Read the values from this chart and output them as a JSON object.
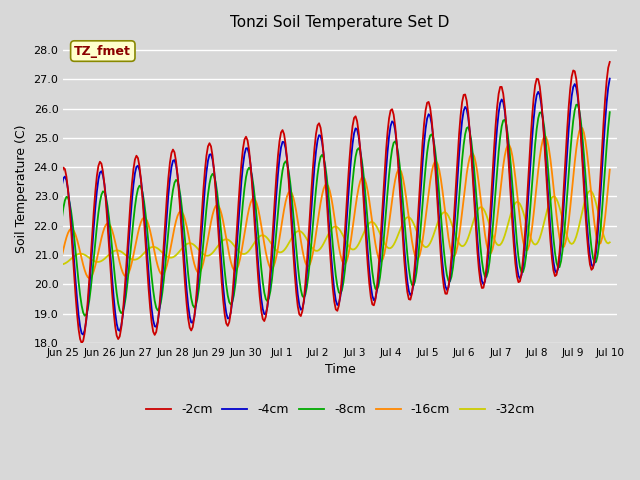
{
  "title": "Tonzi Soil Temperature Set D",
  "xlabel": "Time",
  "ylabel": "Soil Temperature (C)",
  "legend_label": "TZ_fmet",
  "ylim": [
    18.0,
    28.5
  ],
  "yticks": [
    18.0,
    19.0,
    20.0,
    21.0,
    22.0,
    23.0,
    24.0,
    25.0,
    26.0,
    27.0,
    28.0
  ],
  "series_labels": [
    "-2cm",
    "-4cm",
    "-8cm",
    "-16cm",
    "-32cm"
  ],
  "series_colors": [
    "#cc0000",
    "#0000cc",
    "#00aa00",
    "#ff8800",
    "#cccc00"
  ],
  "background_color": "#d8d8d8",
  "plot_bg_color": "#d8d8d8",
  "grid_color": "#ffffff",
  "figsize": [
    6.4,
    4.8
  ],
  "dpi": 100
}
